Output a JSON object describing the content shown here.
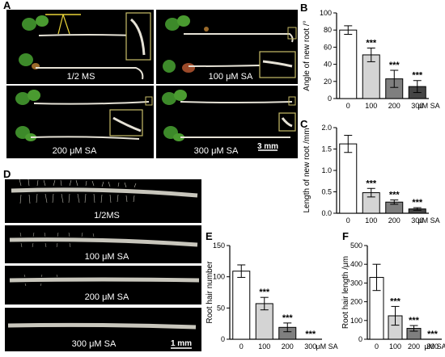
{
  "panel_letters": {
    "a": "A",
    "b": "B",
    "c": "C",
    "d": "D",
    "e": "E",
    "f": "F"
  },
  "panel_a": {
    "cells": [
      "1/2 MS",
      "100 μM SA",
      "200 μM SA",
      "300 μM SA"
    ],
    "scale_bar": "3 mm"
  },
  "panel_d": {
    "rows": [
      "1/2MS",
      "100 μM SA",
      "200 μM SA",
      "300 μM SA"
    ],
    "scale_bar": "1 mm"
  },
  "chart_data": [
    {
      "id": "B",
      "type": "bar",
      "categories": [
        "0",
        "100",
        "200",
        "300"
      ],
      "values": [
        80,
        51,
        23,
        14
      ],
      "errors": [
        5,
        8,
        10,
        7
      ],
      "significance": [
        "",
        "***",
        "***",
        "***"
      ],
      "ylabel": "Angle of new root /°",
      "x_unit": "μM SA",
      "ylim": [
        0,
        100
      ],
      "yticks": [
        0,
        20,
        40,
        60,
        80,
        100
      ]
    },
    {
      "id": "C",
      "type": "bar",
      "categories": [
        "0",
        "100",
        "200",
        "300"
      ],
      "values": [
        1.62,
        0.48,
        0.26,
        0.1
      ],
      "errors": [
        0.2,
        0.1,
        0.05,
        0.03
      ],
      "significance": [
        "",
        "***",
        "***",
        "***"
      ],
      "ylabel": "Length of new root /mm",
      "x_unit": "μM SA",
      "ylim": [
        0,
        2.0
      ],
      "yticks": [
        0.0,
        0.5,
        1.0,
        1.5,
        2.0
      ]
    },
    {
      "id": "E",
      "type": "bar",
      "categories": [
        "0",
        "100",
        "200",
        "300"
      ],
      "values": [
        109,
        57,
        19,
        0
      ],
      "errors": [
        10,
        10,
        7,
        0
      ],
      "significance": [
        "",
        "***",
        "***",
        "***"
      ],
      "ylabel": "Root hair number",
      "x_unit": "μM SA",
      "ylim": [
        0,
        150
      ],
      "yticks": [
        0,
        50,
        100,
        150
      ]
    },
    {
      "id": "F",
      "type": "bar",
      "categories": [
        "0",
        "100",
        "200",
        "300"
      ],
      "values": [
        330,
        125,
        58,
        0
      ],
      "errors": [
        70,
        50,
        15,
        0
      ],
      "significance": [
        "",
        "***",
        "***",
        "***"
      ],
      "ylabel": "Root hair length /μm",
      "x_unit": "μM SA",
      "ylim": [
        0,
        500
      ],
      "yticks": [
        0,
        100,
        200,
        300,
        400,
        500
      ]
    }
  ],
  "colors": {
    "bar_fills": [
      "#ffffff",
      "#d4d4d4",
      "#7f7f7f",
      "#454545"
    ],
    "photo_bg": "#000000",
    "root": "#e6e2d6",
    "cotyledon": "#3d8a2a",
    "inset_border": "#c9bd69"
  }
}
